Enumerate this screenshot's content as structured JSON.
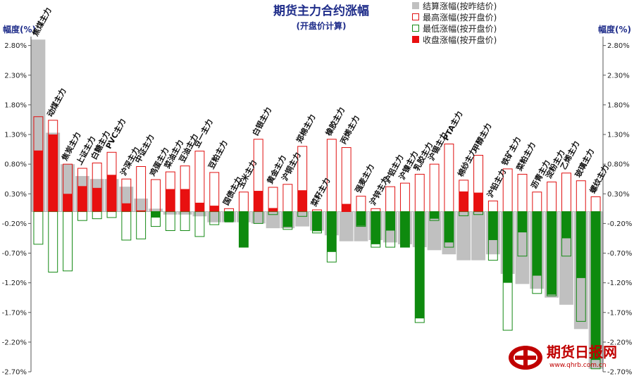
{
  "chart_data": {
    "type": "bar",
    "title": "期货主力合约涨幅",
    "subtitle": "(开盘价计算)",
    "ylabel_left": "幅度(%)",
    "ylabel_right": "幅度(%)",
    "ylim": [
      -2.7,
      2.95
    ],
    "yticks": [
      "2.80%",
      "2.30%",
      "1.80%",
      "1.30%",
      "0.80%",
      "0.30%",
      "-0.20%",
      "-0.70%",
      "-1.20%",
      "-1.70%",
      "-2.20%",
      "-2.70%"
    ],
    "ytick_values": [
      2.8,
      2.3,
      1.8,
      1.3,
      0.8,
      0.3,
      -0.2,
      -0.7,
      -1.2,
      -1.7,
      -2.2,
      -2.7
    ],
    "categories": [
      "焦煤主力",
      "动煤主力",
      "焦炭主力",
      "上证主力",
      "白糖主力",
      "PVC主力",
      "沪深主力",
      "中证主力",
      "鸡蛋主力",
      "菜油主力",
      "豆油主力",
      "豆一主力",
      "豆粕主力",
      "国债主力",
      "玉米主力",
      "白银主力",
      "黄金主力",
      "沪铜主力",
      "郑棉主力",
      "菜籽主力",
      "橡胶主力",
      "丙烯主力",
      "强麦主力",
      "沪锌主力",
      "沪铝主力",
      "沪镍主力",
      "乳胶主力",
      "沪锡主力",
      "PTA主力",
      "棉纱主力",
      "甲醇主力",
      "沪铅主力",
      "铁矿主力",
      "菜粕主力",
      "沥青主力",
      "淀粉主力",
      "乙烯主力",
      "玻璃主力",
      "螺纹主力"
    ],
    "series": [
      {
        "name": "结算涨幅(按昨结价)",
        "values": [
          2.9,
          1.33,
          0.8,
          0.6,
          0.55,
          0.55,
          0.42,
          0.22,
          0.05,
          -0.05,
          -0.05,
          -0.08,
          -0.18,
          -0.18,
          -0.18,
          -0.2,
          -0.28,
          -0.28,
          -0.25,
          -0.32,
          -0.4,
          -0.5,
          -0.5,
          -0.48,
          -0.52,
          -0.55,
          -0.6,
          -0.65,
          -0.72,
          -0.82,
          -0.82,
          -0.72,
          -1.05,
          -1.22,
          -1.3,
          -1.45,
          -1.57,
          -1.98,
          -2.65
        ]
      },
      {
        "name": "最高涨幅(按开盘价)",
        "values": [
          1.6,
          1.54,
          0.8,
          0.73,
          0.82,
          1.0,
          0.55,
          0.76,
          0.54,
          0.67,
          0.77,
          1.02,
          0.66,
          0.05,
          0.33,
          1.22,
          0.41,
          0.46,
          1.1,
          0.03,
          1.22,
          1.08,
          0.26,
          0.05,
          0.42,
          0.48,
          0.63,
          0.8,
          1.14,
          0.53,
          0.95,
          0.18,
          0.72,
          0.63,
          0.33,
          0.5,
          0.65,
          0.52,
          0.25
        ]
      },
      {
        "name": "最低涨幅(按开盘价)",
        "values": [
          -0.55,
          -1.02,
          -1.0,
          -0.15,
          -0.12,
          -0.1,
          -0.48,
          -0.46,
          -0.25,
          -0.32,
          -0.32,
          -0.42,
          -0.22,
          -0.16,
          -0.6,
          -0.2,
          -0.05,
          -0.3,
          -0.08,
          -0.36,
          -0.85,
          0,
          -0.25,
          -0.6,
          -0.6,
          -0.6,
          -1.87,
          -0.15,
          -0.6,
          -0.07,
          -0.05,
          -0.82,
          -2.0,
          -0.75,
          -1.38,
          -1.42,
          -0.75,
          -1.85,
          -2.65
        ]
      },
      {
        "name": "收盘涨幅(按开盘价)",
        "values": [
          1.03,
          1.3,
          0.3,
          0.43,
          0.4,
          0.62,
          0.14,
          0.02,
          -0.1,
          0.38,
          0.38,
          0.15,
          0.1,
          -0.18,
          -0.6,
          0.35,
          0.06,
          -0.26,
          0.36,
          -0.33,
          -0.68,
          0.13,
          -0.24,
          -0.55,
          -0.32,
          -0.6,
          -1.8,
          -0.12,
          -0.52,
          0.34,
          0.32,
          -0.48,
          -1.2,
          -0.35,
          -1.08,
          -1.4,
          -0.45,
          -1.12,
          -2.5
        ]
      }
    ],
    "colors": {
      "settle": "#c0c0c0",
      "high": "#e01010",
      "low": "#158a15",
      "close_up": "#e81010",
      "close_down": "#0e8a0e",
      "title": "#1f2d8a"
    },
    "legend_position": "top-right",
    "grid": false
  },
  "watermark": {
    "brand": "期货日报网",
    "url": "www.qhrb.com.cn"
  }
}
